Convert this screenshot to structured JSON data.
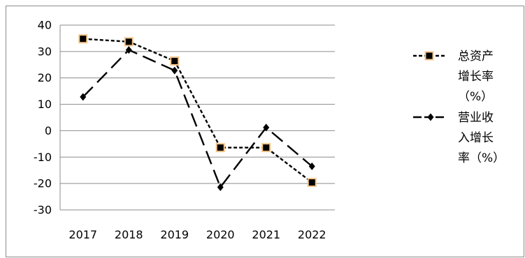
{
  "chart_data": {
    "type": "line",
    "title": "",
    "xlabel": "",
    "ylabel": "",
    "categories": [
      "2017",
      "2018",
      "2019",
      "2020",
      "2021",
      "2022"
    ],
    "ylim": [
      -30,
      40
    ],
    "yticks": [
      "40",
      "30",
      "20",
      "10",
      "0",
      "-10",
      "-20",
      "-30"
    ],
    "ytick_values": [
      40,
      30,
      20,
      10,
      0,
      -10,
      -20,
      -30
    ],
    "grid": true,
    "legend_position": "right",
    "series": [
      {
        "name": "总资产增长率（%）",
        "legend_lines": [
          "总资产",
          "增长率",
          "（%）"
        ],
        "values": [
          34.8,
          33.7,
          26.4,
          -6.4,
          -6.4,
          -19.6
        ],
        "line_style": "short-dash",
        "marker": "square",
        "color": "#000000",
        "marker_fill": "#000000",
        "marker_edge": "#f5c58a"
      },
      {
        "name": "营业收入增长率（%）",
        "legend_lines": [
          "营业收",
          "入增长",
          "率（%）"
        ],
        "values": [
          12.8,
          30.6,
          22.8,
          -21.4,
          1.2,
          -13.5
        ],
        "line_style": "long-dash",
        "marker": "diamond",
        "color": "#000000"
      }
    ]
  }
}
